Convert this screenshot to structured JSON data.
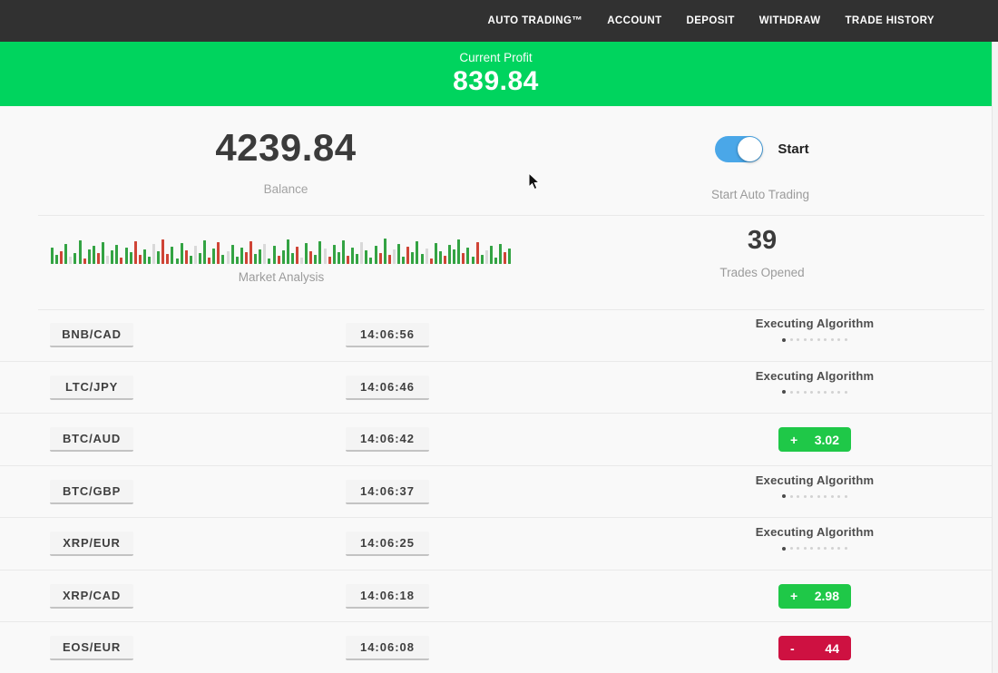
{
  "nav": {
    "items": [
      "AUTO TRADING™",
      "ACCOUNT",
      "DEPOSIT",
      "WITHDRAW",
      "TRADE HISTORY"
    ]
  },
  "profit_banner": {
    "label": "Current Profit",
    "value": "839.84"
  },
  "stats": {
    "balance": {
      "value": "4239.84",
      "label": "Balance"
    },
    "auto_trading": {
      "toggle_label": "Start",
      "label": "Start Auto Trading",
      "toggle_on": true
    },
    "market": {
      "label": "Market Analysis"
    },
    "trades": {
      "value": "39",
      "label": "Trades Opened"
    }
  },
  "chart_data": {
    "type": "bar",
    "title": "Market Analysis",
    "note": "decorative candles strip, baseline-aligned mini bars, heights in px (max 30), colors g=green r=red p=pale",
    "heights": [
      18,
      10,
      14,
      22,
      8,
      12,
      26,
      6,
      16,
      20,
      12,
      24,
      9,
      15,
      21,
      7,
      18,
      13,
      25,
      10,
      16,
      8,
      22,
      14,
      27,
      11,
      19,
      6,
      23,
      15,
      9,
      20,
      12,
      26,
      7,
      17,
      24,
      10,
      14,
      21,
      8,
      18,
      13,
      25,
      11,
      16,
      22,
      6,
      20,
      9,
      15,
      27,
      12,
      19,
      7,
      23,
      14,
      10,
      25,
      17,
      8,
      21,
      13,
      26,
      9,
      18,
      11,
      24,
      15,
      7,
      20,
      12,
      28,
      10,
      16,
      22,
      8,
      19,
      13,
      25,
      11,
      17,
      6,
      23,
      14,
      9,
      21,
      16,
      27,
      12,
      18,
      8,
      24,
      10,
      15,
      20,
      7,
      22,
      13,
      17
    ],
    "colors": "ggrgpggrggrgpggrggrrggpgrrgggrgpggrgrgpgggrrggpggrgggrpgrggprgggrggpgggrgrpggrgggprggrgggrggrgpgggrg",
    "color_map": {
      "g": "#33a343",
      "r": "#cf4436",
      "p": "#d9d9d9"
    }
  },
  "trades_table": {
    "rows": [
      {
        "pair": "BNB/CAD",
        "time": "14:06:56",
        "status": {
          "type": "executing",
          "label": "Executing Algorithm",
          "dots_total": 10,
          "dots_filled": 1
        }
      },
      {
        "pair": "LTC/JPY",
        "time": "14:06:46",
        "status": {
          "type": "executing",
          "label": "Executing Algorithm",
          "dots_total": 10,
          "dots_filled": 1
        }
      },
      {
        "pair": "BTC/AUD",
        "time": "14:06:42",
        "status": {
          "type": "profit",
          "sign": "+",
          "value": "3.02"
        }
      },
      {
        "pair": "BTC/GBP",
        "time": "14:06:37",
        "status": {
          "type": "executing",
          "label": "Executing Algorithm",
          "dots_total": 10,
          "dots_filled": 1
        }
      },
      {
        "pair": "XRP/EUR",
        "time": "14:06:25",
        "status": {
          "type": "executing",
          "label": "Executing Algorithm",
          "dots_total": 10,
          "dots_filled": 1
        }
      },
      {
        "pair": "XRP/CAD",
        "time": "14:06:18",
        "status": {
          "type": "profit",
          "sign": "+",
          "value": "2.98"
        }
      },
      {
        "pair": "EOS/EUR",
        "time": "14:06:08",
        "status": {
          "type": "loss",
          "sign": "-",
          "value": "44"
        }
      }
    ]
  },
  "colors": {
    "nav_bg": "#313131",
    "banner_green": "#00d45e",
    "badge_green": "#1fc848",
    "badge_red": "#ce1141",
    "toggle_blue": "#4aa7e8"
  }
}
